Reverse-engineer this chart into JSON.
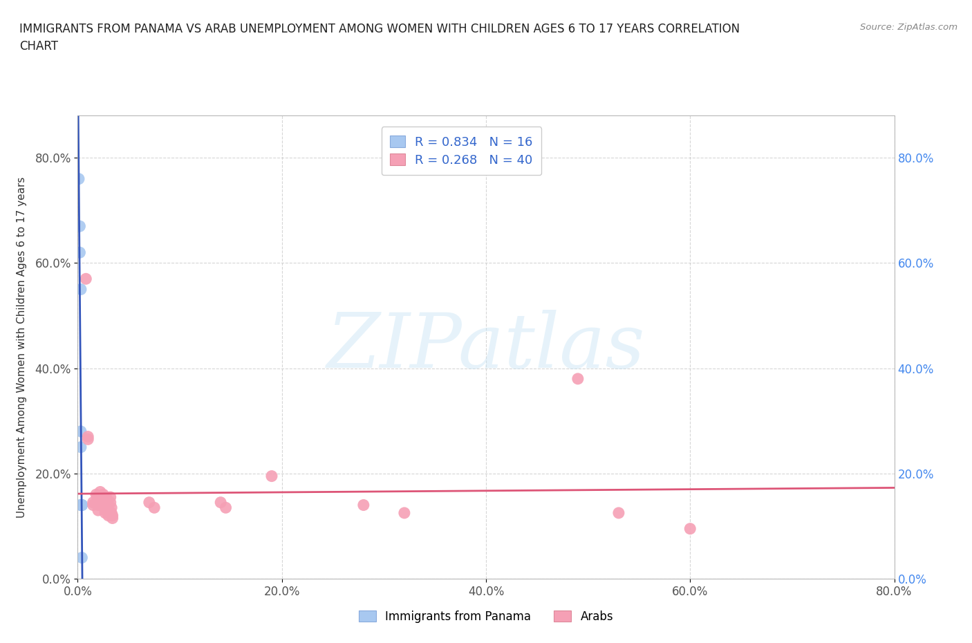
{
  "title_line1": "IMMIGRANTS FROM PANAMA VS ARAB UNEMPLOYMENT AMONG WOMEN WITH CHILDREN AGES 6 TO 17 YEARS CORRELATION",
  "title_line2": "CHART",
  "source": "Source: ZipAtlas.com",
  "ylabel": "Unemployment Among Women with Children Ages 6 to 17 years",
  "xlim": [
    0.0,
    0.8
  ],
  "ylim": [
    0.0,
    0.88
  ],
  "xticks": [
    0.0,
    0.2,
    0.4,
    0.6,
    0.8
  ],
  "yticks": [
    0.0,
    0.2,
    0.4,
    0.6,
    0.8
  ],
  "panama_color": "#a8c8f0",
  "arab_color": "#f5a0b5",
  "panama_line_color": "#3355bb",
  "arab_line_color": "#dd5577",
  "panama_R": 0.834,
  "panama_N": 16,
  "arab_R": 0.268,
  "arab_N": 40,
  "legend_R_color": "#3366cc",
  "right_tick_color": "#4488ee",
  "panama_scatter": [
    [
      0.001,
      0.76
    ],
    [
      0.002,
      0.67
    ],
    [
      0.002,
      0.62
    ],
    [
      0.003,
      0.55
    ],
    [
      0.003,
      0.28
    ],
    [
      0.003,
      0.25
    ],
    [
      0.003,
      0.14
    ],
    [
      0.003,
      0.14
    ],
    [
      0.003,
      0.14
    ],
    [
      0.004,
      0.14
    ],
    [
      0.004,
      0.14
    ],
    [
      0.004,
      0.14
    ],
    [
      0.004,
      0.14
    ],
    [
      0.004,
      0.14
    ],
    [
      0.004,
      0.14
    ],
    [
      0.004,
      0.04
    ]
  ],
  "arab_scatter": [
    [
      0.008,
      0.57
    ],
    [
      0.01,
      0.27
    ],
    [
      0.01,
      0.265
    ],
    [
      0.015,
      0.14
    ],
    [
      0.015,
      0.145
    ],
    [
      0.018,
      0.16
    ],
    [
      0.019,
      0.155
    ],
    [
      0.02,
      0.14
    ],
    [
      0.02,
      0.13
    ],
    [
      0.022,
      0.165
    ],
    [
      0.022,
      0.155
    ],
    [
      0.022,
      0.145
    ],
    [
      0.025,
      0.16
    ],
    [
      0.026,
      0.15
    ],
    [
      0.026,
      0.14
    ],
    [
      0.027,
      0.135
    ],
    [
      0.027,
      0.13
    ],
    [
      0.027,
      0.125
    ],
    [
      0.028,
      0.155
    ],
    [
      0.028,
      0.15
    ],
    [
      0.029,
      0.135
    ],
    [
      0.03,
      0.13
    ],
    [
      0.03,
      0.125
    ],
    [
      0.03,
      0.12
    ],
    [
      0.032,
      0.155
    ],
    [
      0.032,
      0.145
    ],
    [
      0.033,
      0.135
    ],
    [
      0.033,
      0.125
    ],
    [
      0.034,
      0.12
    ],
    [
      0.034,
      0.115
    ],
    [
      0.07,
      0.145
    ],
    [
      0.075,
      0.135
    ],
    [
      0.14,
      0.145
    ],
    [
      0.145,
      0.135
    ],
    [
      0.19,
      0.195
    ],
    [
      0.28,
      0.14
    ],
    [
      0.32,
      0.125
    ],
    [
      0.49,
      0.38
    ],
    [
      0.53,
      0.125
    ],
    [
      0.6,
      0.095
    ]
  ]
}
